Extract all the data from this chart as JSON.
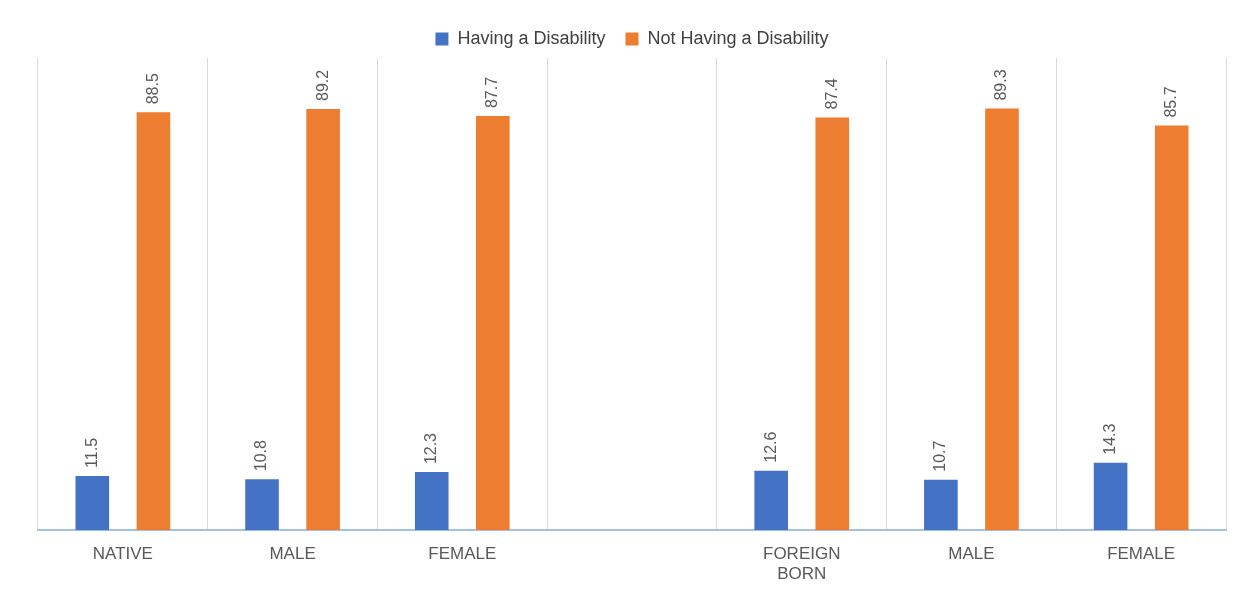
{
  "chart_data": {
    "type": "bar",
    "categories": [
      "NATIVE",
      "MALE",
      "FEMALE",
      null,
      "FOREIGN BORN",
      "MALE",
      "FEMALE"
    ],
    "series": [
      {
        "name": "Having a Disability",
        "color": "#4472c4",
        "values": [
          11.5,
          10.8,
          12.3,
          null,
          12.6,
          10.7,
          14.3
        ]
      },
      {
        "name": "Not Having a Disability",
        "color": "#ed7d31",
        "values": [
          88.5,
          89.2,
          87.7,
          null,
          87.4,
          89.3,
          85.7
        ]
      }
    ],
    "data_labels": true,
    "grid": "x",
    "legend": "top"
  }
}
